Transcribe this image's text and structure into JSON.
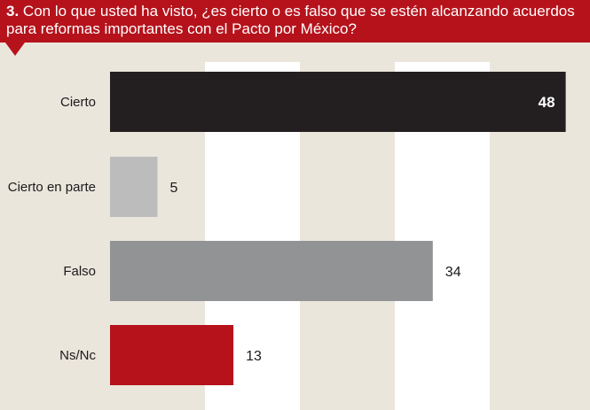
{
  "question": {
    "number": "3.",
    "text": "Con lo que usted ha visto, ¿es cierto o es falso que se estén alcanzando acuerdos para reformas importantes con el Pacto por México?"
  },
  "chart_data": {
    "type": "bar",
    "orientation": "horizontal",
    "categories": [
      "Cierto",
      "Cierto en parte",
      "Falso",
      "Ns/Nc"
    ],
    "values": [
      48,
      5,
      34,
      13
    ],
    "colors": [
      "#231f20",
      "#bcbcbd",
      "#929395",
      "#b5121b"
    ],
    "value_label_inside": [
      true,
      false,
      false,
      false
    ],
    "xlim": [
      0,
      50
    ],
    "grid": true,
    "background_colors": {
      "band_light": "#ebe6dc",
      "band_white": "#ffffff",
      "header": "#b5121b"
    }
  }
}
